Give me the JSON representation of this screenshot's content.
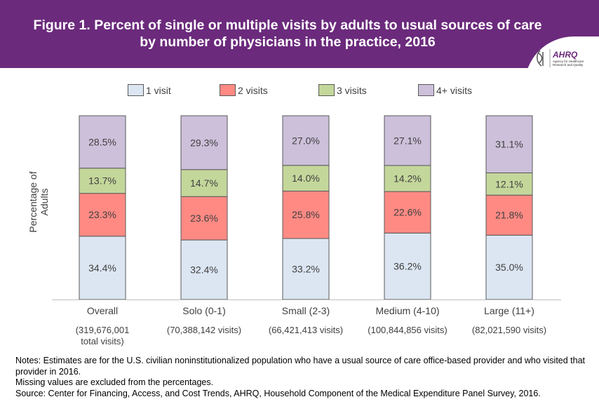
{
  "header": {
    "title": "Figure 1. Percent of single or multiple visits by adults to usual sources of care by number of physicians in the practice, 2016",
    "logo_text": "AHRQ Agency for Healthcare Research and Quality",
    "color": "#6b2a7c"
  },
  "chart_data": {
    "type": "bar",
    "stacked": true,
    "title": "Figure 1. Percent of single or multiple visits by adults to usual sources of care by number of physicians in the practice, 2016",
    "ylabel": "Percentage of Adults",
    "ylim": [
      0,
      100
    ],
    "legend_position": "top",
    "grid": false,
    "categories": [
      "Overall",
      "Solo (0-1)",
      "Small (2-3)",
      "Medium (4-10)",
      "Large (11+)"
    ],
    "category_counts": [
      "(319,676,001 total visits)",
      "(70,388,142 visits)",
      "(66,421,413 visits)",
      "(100,844,856 visits)",
      "(82,021,590 visits)"
    ],
    "series": [
      {
        "name": "1 visit",
        "color": "#dce6f2",
        "values": [
          34.4,
          32.4,
          33.2,
          36.2,
          35.0
        ]
      },
      {
        "name": "2 visits",
        "color": "#ff8a84",
        "values": [
          23.3,
          23.6,
          25.8,
          22.6,
          21.8
        ]
      },
      {
        "name": "3 visits",
        "color": "#c4d79b",
        "values": [
          13.7,
          14.7,
          14.0,
          14.2,
          12.1
        ]
      },
      {
        "name": "4+ visits",
        "color": "#ccc0da",
        "values": [
          28.5,
          29.3,
          27.0,
          27.1,
          31.1
        ]
      }
    ]
  },
  "notes": [
    "Notes: Estimates are for the U.S. civilian noninstitutionalized population who have a usual source of care office-based provider and who visited that provider in 2016.",
    "Missing values are excluded from the percentages.",
    "Source: Center for Financing, Access, and Cost Trends, AHRQ, Household Component of the Medical Expenditure Panel Survey, 2016."
  ]
}
